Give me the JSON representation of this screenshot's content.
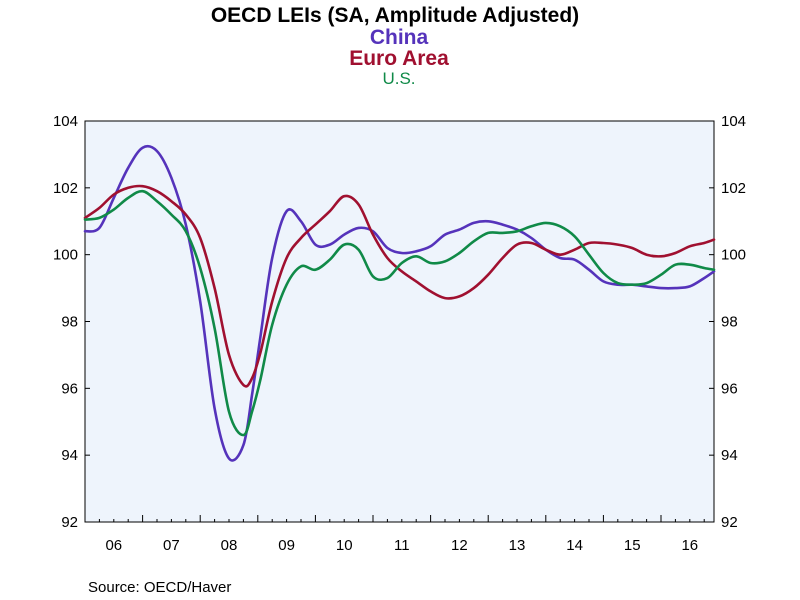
{
  "chart_data": {
    "type": "line",
    "title": "OECD LEIs (SA, Amplitude Adjusted)",
    "source": "Source:  OECD/Haver",
    "xlabel": "",
    "ylabel": "",
    "x_tick_labels": [
      "06",
      "07",
      "08",
      "09",
      "10",
      "11",
      "12",
      "13",
      "14",
      "15",
      "16"
    ],
    "x_range": [
      2006.0,
      2016.92
    ],
    "y_ticks": [
      92,
      94,
      96,
      98,
      100,
      102,
      104
    ],
    "ylim": [
      92,
      104
    ],
    "plot_background": "#eef4fc",
    "series": [
      {
        "name": "China",
        "color": "#5533bb",
        "x": [
          2006.0,
          2006.25,
          2006.5,
          2006.75,
          2007.0,
          2007.25,
          2007.5,
          2007.75,
          2008.0,
          2008.25,
          2008.5,
          2008.75,
          2008.9,
          2009.05,
          2009.25,
          2009.5,
          2009.75,
          2010.0,
          2010.25,
          2010.5,
          2010.75,
          2011.0,
          2011.25,
          2011.5,
          2011.75,
          2012.0,
          2012.25,
          2012.5,
          2012.75,
          2013.0,
          2013.25,
          2013.5,
          2013.75,
          2014.0,
          2014.25,
          2014.5,
          2014.75,
          2015.0,
          2015.25,
          2015.5,
          2015.75,
          2016.0,
          2016.25,
          2016.5,
          2016.75,
          2016.92
        ],
        "values": [
          100.7,
          100.8,
          101.7,
          102.6,
          103.2,
          103.1,
          102.3,
          100.9,
          98.6,
          95.4,
          93.9,
          94.3,
          95.8,
          97.6,
          99.9,
          101.3,
          101.0,
          100.3,
          100.3,
          100.6,
          100.8,
          100.7,
          100.2,
          100.05,
          100.1,
          100.25,
          100.6,
          100.75,
          100.95,
          101.0,
          100.9,
          100.75,
          100.5,
          100.15,
          99.9,
          99.85,
          99.55,
          99.2,
          99.1,
          99.1,
          99.05,
          99.0,
          99.0,
          99.05,
          99.3,
          99.5
        ]
      },
      {
        "name": "Euro Area",
        "color": "#a01030",
        "x": [
          2006.0,
          2006.25,
          2006.5,
          2006.75,
          2007.0,
          2007.25,
          2007.5,
          2007.75,
          2008.0,
          2008.25,
          2008.5,
          2008.75,
          2008.9,
          2009.05,
          2009.25,
          2009.5,
          2009.75,
          2010.0,
          2010.25,
          2010.5,
          2010.75,
          2011.0,
          2011.25,
          2011.5,
          2011.75,
          2012.0,
          2012.25,
          2012.5,
          2012.75,
          2013.0,
          2013.25,
          2013.5,
          2013.75,
          2014.0,
          2014.25,
          2014.5,
          2014.75,
          2015.0,
          2015.25,
          2015.5,
          2015.75,
          2016.0,
          2016.25,
          2016.5,
          2016.75,
          2016.92
        ],
        "values": [
          101.1,
          101.4,
          101.8,
          102.0,
          102.05,
          101.9,
          101.6,
          101.2,
          100.5,
          99.0,
          97.0,
          96.1,
          96.3,
          97.1,
          98.6,
          99.9,
          100.5,
          100.9,
          101.3,
          101.75,
          101.5,
          100.6,
          99.9,
          99.5,
          99.2,
          98.9,
          98.7,
          98.75,
          99.0,
          99.4,
          99.9,
          100.3,
          100.35,
          100.15,
          100.0,
          100.15,
          100.35,
          100.35,
          100.3,
          100.2,
          100.0,
          99.95,
          100.05,
          100.25,
          100.35,
          100.45
        ]
      },
      {
        "name": "U.S.",
        "color": "#108a48",
        "x": [
          2006.0,
          2006.25,
          2006.5,
          2006.75,
          2007.0,
          2007.25,
          2007.5,
          2007.75,
          2008.0,
          2008.25,
          2008.5,
          2008.75,
          2008.9,
          2009.05,
          2009.25,
          2009.5,
          2009.75,
          2010.0,
          2010.25,
          2010.5,
          2010.75,
          2011.0,
          2011.25,
          2011.5,
          2011.75,
          2012.0,
          2012.25,
          2012.5,
          2012.75,
          2013.0,
          2013.25,
          2013.5,
          2013.75,
          2014.0,
          2014.25,
          2014.5,
          2014.75,
          2015.0,
          2015.25,
          2015.5,
          2015.75,
          2016.0,
          2016.25,
          2016.5,
          2016.75,
          2016.92
        ],
        "values": [
          101.05,
          101.1,
          101.35,
          101.7,
          101.9,
          101.6,
          101.2,
          100.7,
          99.6,
          97.8,
          95.3,
          94.6,
          95.3,
          96.3,
          97.9,
          99.1,
          99.65,
          99.55,
          99.85,
          100.3,
          100.15,
          99.35,
          99.3,
          99.75,
          99.95,
          99.75,
          99.8,
          100.05,
          100.4,
          100.65,
          100.65,
          100.7,
          100.85,
          100.95,
          100.85,
          100.55,
          100.0,
          99.45,
          99.15,
          99.1,
          99.15,
          99.4,
          99.7,
          99.7,
          99.6,
          99.55
        ]
      }
    ]
  }
}
